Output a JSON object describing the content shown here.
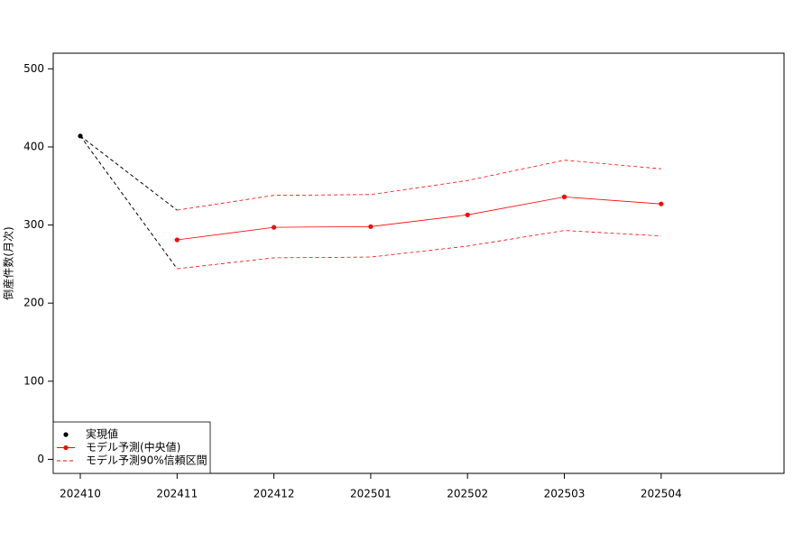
{
  "chart_data": {
    "type": "line",
    "y_label": "倒産件数(月次)",
    "categories": [
      "202410",
      "202411",
      "202412",
      "202501",
      "202502",
      "202503",
      "202504"
    ],
    "series": [
      {
        "name": "実現値",
        "color": "#000000",
        "values": [
          414,
          null,
          null,
          null,
          null,
          null,
          null
        ]
      },
      {
        "name": "モデル予測(中央値)",
        "color": "#ff0000",
        "values": [
          null,
          281,
          297,
          298,
          313,
          336,
          327
        ]
      },
      {
        "name": "モデル予測90%信頼区間",
        "color": "#ff0000",
        "values": [
          null,
          319,
          338,
          339,
          357,
          383,
          372
        ],
        "lower": [
          null,
          244,
          258,
          259,
          273,
          293,
          286
        ]
      }
    ],
    "ylim": [
      -18,
      520
    ],
    "yticks": [
      0,
      100,
      200,
      300,
      400,
      500
    ],
    "legend": "bottom-left"
  }
}
